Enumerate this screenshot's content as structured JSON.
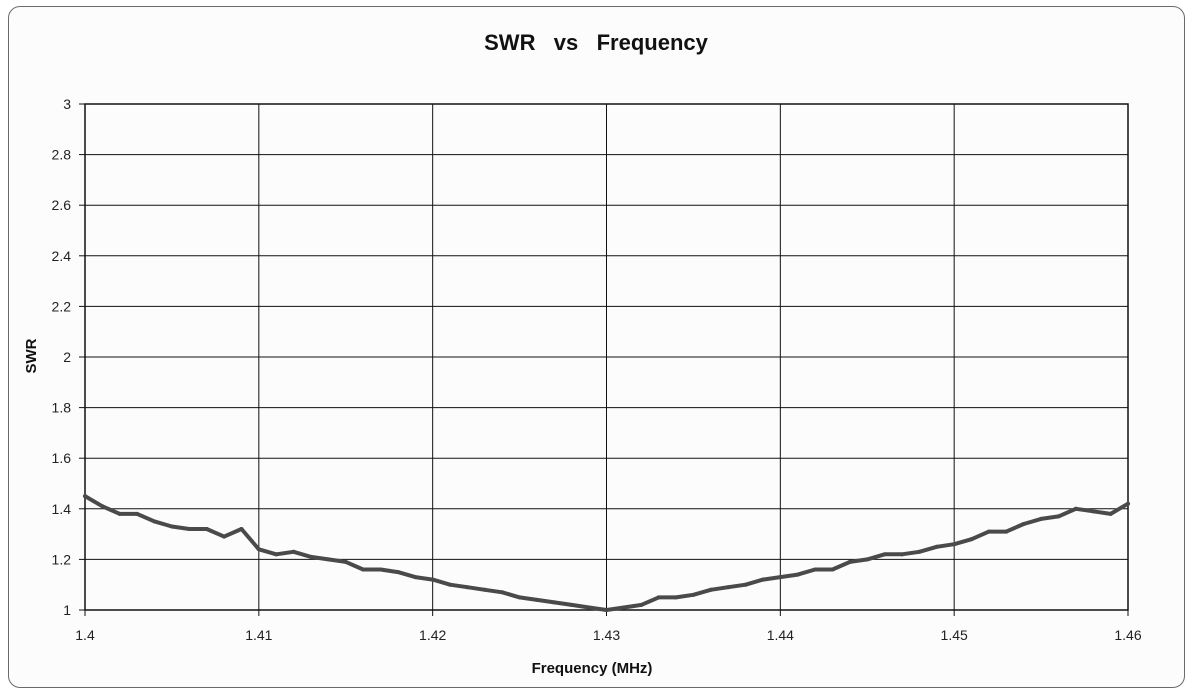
{
  "chart_data": {
    "type": "line",
    "title": "SWR   vs   Frequency",
    "xlabel": "Frequency (MHz)",
    "ylabel": "SWR",
    "xlim": [
      1.4,
      1.46
    ],
    "ylim": [
      1,
      3
    ],
    "x_ticks": [
      "1.4",
      "1.41",
      "1.42",
      "1.43",
      "1.44",
      "1.45",
      "1.46"
    ],
    "y_ticks": [
      "1",
      "1.2",
      "1.4",
      "1.6",
      "1.8",
      "2",
      "2.2",
      "2.4",
      "2.6",
      "2.8",
      "3"
    ],
    "grid": true,
    "legend": "none",
    "line_color": "#4a4a4a",
    "series": [
      {
        "x": [
          1.4,
          1.401,
          1.402,
          1.403,
          1.404,
          1.405,
          1.406,
          1.407,
          1.408,
          1.409,
          1.41,
          1.411,
          1.412,
          1.413,
          1.414,
          1.415,
          1.416,
          1.417,
          1.418,
          1.419,
          1.42,
          1.421,
          1.422,
          1.423,
          1.424,
          1.425,
          1.426,
          1.427,
          1.428,
          1.429,
          1.43,
          1.431,
          1.432,
          1.433,
          1.434,
          1.435,
          1.436,
          1.437,
          1.438,
          1.439,
          1.44,
          1.441,
          1.442,
          1.443,
          1.444,
          1.445,
          1.446,
          1.447,
          1.448,
          1.449,
          1.45,
          1.451,
          1.452,
          1.453,
          1.454,
          1.455,
          1.456,
          1.457,
          1.458,
          1.459,
          1.46
        ],
        "values": [
          1.45,
          1.41,
          1.38,
          1.38,
          1.35,
          1.33,
          1.32,
          1.32,
          1.29,
          1.32,
          1.24,
          1.22,
          1.23,
          1.21,
          1.2,
          1.19,
          1.16,
          1.16,
          1.15,
          1.13,
          1.12,
          1.1,
          1.09,
          1.08,
          1.07,
          1.05,
          1.04,
          1.03,
          1.02,
          1.01,
          1.0,
          1.01,
          1.02,
          1.05,
          1.05,
          1.06,
          1.08,
          1.09,
          1.1,
          1.12,
          1.13,
          1.14,
          1.16,
          1.16,
          1.19,
          1.2,
          1.22,
          1.22,
          1.23,
          1.25,
          1.26,
          1.28,
          1.31,
          1.31,
          1.34,
          1.36,
          1.37,
          1.4,
          1.39,
          1.38,
          1.42
        ]
      }
    ]
  }
}
